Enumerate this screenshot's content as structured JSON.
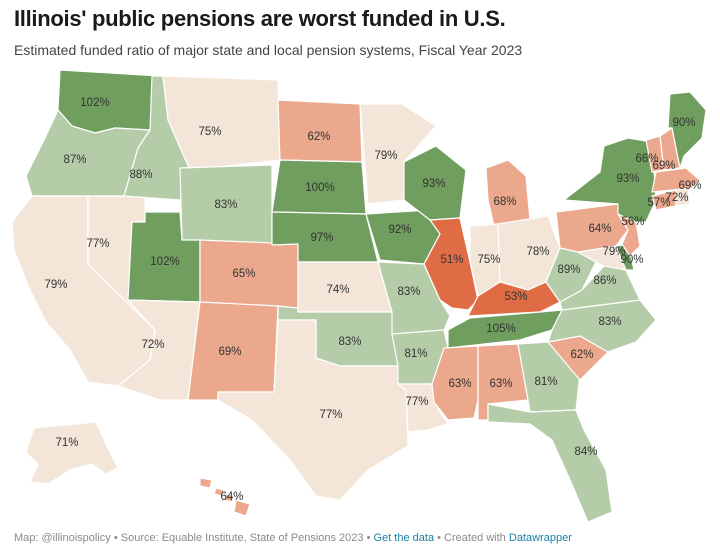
{
  "title": "Illinois' public pensions are worst funded in U.S.",
  "subtitle": "Estimated funded ratio of major state and local pension systems, Fiscal Year 2023",
  "footer": {
    "map_credit": "Map: @illinoispolicy",
    "source": "Source: Equable Institute, State of Pensions 2023",
    "get_data": "Get the data",
    "created_with": "Created with",
    "tool": "Datawrapper",
    "separator": "•"
  },
  "colors": {
    "over_90": "#6f9e5e",
    "80_to_90": "#b4cda8",
    "70_to_80": "#f3e6d8",
    "55_to_70": "#eba88d",
    "under_55": "#df6c45",
    "border": "#ffffff",
    "label": "#333333"
  },
  "states": [
    {
      "state": "WA",
      "value": "102%"
    },
    {
      "state": "OR",
      "value": "87%"
    },
    {
      "state": "CA",
      "value": "79%"
    },
    {
      "state": "NV",
      "value": "77%"
    },
    {
      "state": "ID",
      "value": "88%"
    },
    {
      "state": "MT",
      "value": "75%"
    },
    {
      "state": "WY",
      "value": "83%"
    },
    {
      "state": "UT",
      "value": "102%"
    },
    {
      "state": "AZ",
      "value": "72%"
    },
    {
      "state": "CO",
      "value": "65%"
    },
    {
      "state": "NM",
      "value": "69%"
    },
    {
      "state": "ND",
      "value": "62%"
    },
    {
      "state": "SD",
      "value": "100%"
    },
    {
      "state": "NE",
      "value": "97%"
    },
    {
      "state": "KS",
      "value": "74%"
    },
    {
      "state": "OK",
      "value": "83%"
    },
    {
      "state": "TX",
      "value": "77%"
    },
    {
      "state": "MN",
      "value": "79%"
    },
    {
      "state": "IA",
      "value": "92%"
    },
    {
      "state": "MO",
      "value": "83%"
    },
    {
      "state": "AR",
      "value": "81%"
    },
    {
      "state": "LA",
      "value": "77%"
    },
    {
      "state": "WI",
      "value": "93%"
    },
    {
      "state": "IL",
      "value": "51%"
    },
    {
      "state": "MI",
      "value": "68%"
    },
    {
      "state": "IN",
      "value": "75%"
    },
    {
      "state": "OH",
      "value": "78%"
    },
    {
      "state": "KY",
      "value": "53%"
    },
    {
      "state": "TN",
      "value": "105%"
    },
    {
      "state": "MS",
      "value": "63%"
    },
    {
      "state": "AL",
      "value": "63%"
    },
    {
      "state": "GA",
      "value": "81%"
    },
    {
      "state": "FL",
      "value": "84%"
    },
    {
      "state": "SC",
      "value": "62%"
    },
    {
      "state": "NC",
      "value": "83%"
    },
    {
      "state": "VA",
      "value": "86%"
    },
    {
      "state": "WV",
      "value": "89%"
    },
    {
      "state": "PA",
      "value": "64%"
    },
    {
      "state": "NY",
      "value": "93%"
    },
    {
      "state": "NJ",
      "value": "56%"
    },
    {
      "state": "DE",
      "value": "90%"
    },
    {
      "state": "MD",
      "value": "79%"
    },
    {
      "state": "CT",
      "value": "57%"
    },
    {
      "state": "RI",
      "value": "72%"
    },
    {
      "state": "MA",
      "value": "69%"
    },
    {
      "state": "VT",
      "value": "66%"
    },
    {
      "state": "NH",
      "value": "69%"
    },
    {
      "state": "ME",
      "value": "90%"
    },
    {
      "state": "AK",
      "value": "71%"
    },
    {
      "state": "HI",
      "value": "64%"
    }
  ]
}
